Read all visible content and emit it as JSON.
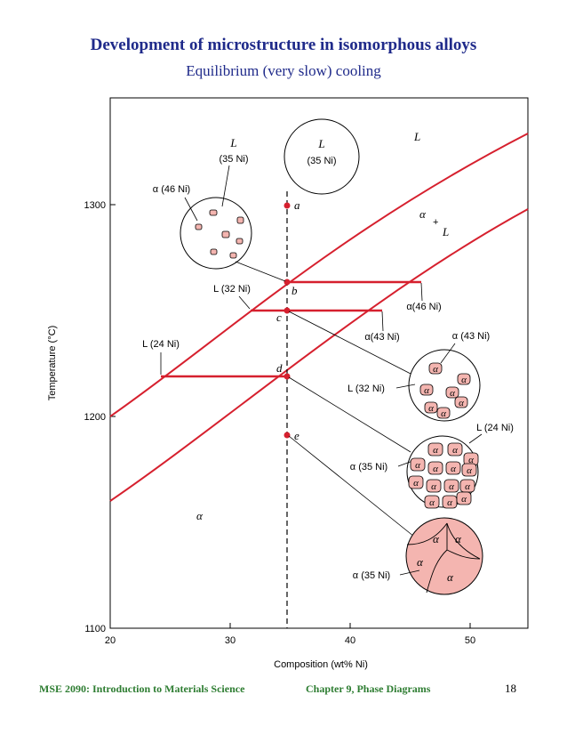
{
  "title": "Development of microstructure in isomorphous alloys",
  "subtitle": "Equilibrium (very slow) cooling",
  "footer": {
    "course": "MSE 2090: Introduction to Materials Science",
    "chapter": "Chapter 9, Phase Diagrams",
    "page": "18"
  },
  "diagram": {
    "x_axis_label": "Composition (wt% Ni)",
    "y_axis_label": "Temperature (°C)",
    "x_ticks": [
      "20",
      "30",
      "40",
      "50"
    ],
    "y_ticks": [
      "1300",
      "1200",
      "1100"
    ],
    "region_L": "L",
    "region_alpha": "α",
    "region_two_phase": [
      "α",
      "+",
      "L"
    ],
    "points": [
      "a",
      "b",
      "c",
      "d",
      "e"
    ],
    "labels": {
      "liquid_a_L": "L",
      "liquid_a_comp": "(35 Ni)",
      "liquid_top_L": "L",
      "liquid_top_comp": "(35 Ni)",
      "alpha46_left": "α (46 Ni)",
      "L32": "L (32 Ni)",
      "alpha46_right": "α(46 Ni)",
      "alpha43": "α(43 Ni)",
      "L24": "L (24 Ni)",
      "alpha43_circle": "α (43 Ni)",
      "L32_circle": "L (32 Ni)",
      "L24_circle": "L (24 Ni)",
      "alpha35_d": "α (35 Ni)",
      "alpha35_e": "α (35 Ni)",
      "alpha_grain": "α",
      "alpha_grain_count_c": 7,
      "alpha_grain_count_d": 14
    }
  },
  "colors": {
    "line": "#d6202e",
    "alpha_fill": "#f4b5b0",
    "title": "#1f2a8a",
    "footer": "#2e7d32"
  }
}
